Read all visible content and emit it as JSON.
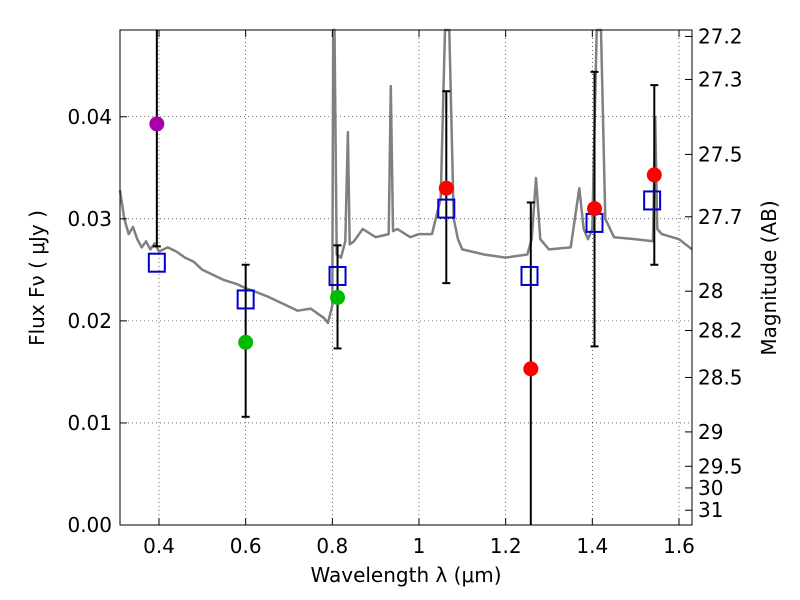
{
  "chart_data": {
    "type": "scatter",
    "title": "",
    "xlabel": "Wavelength  λ (μm)",
    "ylabel": "Flux  Fν  ( μJy )",
    "ylabel2": "Magnitude (AB)",
    "xlim": [
      0.31,
      1.63
    ],
    "ylim": [
      0.0,
      0.0485
    ],
    "grid": true,
    "xticks": [
      "0.4",
      "0.6",
      "0.8",
      "1",
      "1.2",
      "1.4",
      "1.6"
    ],
    "xtick_values": [
      0.4,
      0.6,
      0.8,
      1.0,
      1.2,
      1.4,
      1.6
    ],
    "yticks": [
      "0.00",
      "0.01",
      "0.02",
      "0.03",
      "0.04"
    ],
    "ytick_values": [
      0.0,
      0.01,
      0.02,
      0.03,
      0.04
    ],
    "magnitude_ticks": [
      "27.2",
      "27.3",
      "27.5",
      "27.7",
      "28",
      "28.2",
      "28.5",
      "29",
      "29.5",
      "30",
      "31"
    ],
    "magnitude_values": [
      27.2,
      27.3,
      27.5,
      27.7,
      28.0,
      28.2,
      28.5,
      29.0,
      29.5,
      30.0,
      31.0
    ],
    "colors": {
      "model_line": "#808080",
      "model_square": "#0000cc",
      "errorbar": "#000000",
      "grid": "#000000"
    },
    "series": [
      {
        "name": "SED model",
        "kind": "line",
        "x": [
          0.31,
          0.32,
          0.33,
          0.34,
          0.35,
          0.36,
          0.37,
          0.38,
          0.39,
          0.4,
          0.42,
          0.44,
          0.46,
          0.48,
          0.5,
          0.52,
          0.55,
          0.58,
          0.6,
          0.62,
          0.65,
          0.68,
          0.7,
          0.72,
          0.75,
          0.78,
          0.79,
          0.8,
          0.802,
          0.805,
          0.81,
          0.82,
          0.83,
          0.836,
          0.84,
          0.85,
          0.87,
          0.9,
          0.93,
          0.935,
          0.94,
          0.95,
          0.98,
          1.0,
          1.03,
          1.05,
          1.06,
          1.07,
          1.08,
          1.09,
          1.1,
          1.15,
          1.2,
          1.25,
          1.26,
          1.27,
          1.28,
          1.3,
          1.35,
          1.37,
          1.38,
          1.39,
          1.4,
          1.41,
          1.42,
          1.43,
          1.45,
          1.5,
          1.54,
          1.545,
          1.55,
          1.56,
          1.6,
          1.63
        ],
        "y": [
          0.0328,
          0.03,
          0.0285,
          0.0292,
          0.028,
          0.0272,
          0.0278,
          0.027,
          0.0276,
          0.0268,
          0.0272,
          0.0268,
          0.0262,
          0.0258,
          0.025,
          0.0246,
          0.024,
          0.0236,
          0.0232,
          0.0229,
          0.0224,
          0.0218,
          0.0214,
          0.021,
          0.0212,
          0.0203,
          0.0198,
          0.0215,
          0.0485,
          0.0485,
          0.0265,
          0.0262,
          0.0278,
          0.0385,
          0.0275,
          0.0278,
          0.029,
          0.0282,
          0.0285,
          0.043,
          0.0288,
          0.029,
          0.0282,
          0.0285,
          0.0285,
          0.032,
          0.0485,
          0.0485,
          0.03,
          0.028,
          0.027,
          0.0265,
          0.0262,
          0.0265,
          0.028,
          0.034,
          0.028,
          0.027,
          0.0272,
          0.033,
          0.029,
          0.028,
          0.029,
          0.0485,
          0.0485,
          0.03,
          0.0282,
          0.028,
          0.0278,
          0.04,
          0.029,
          0.0285,
          0.028,
          0.027
        ]
      },
      {
        "name": "Model photometry",
        "kind": "open_square",
        "x": [
          0.395,
          0.6,
          0.812,
          1.063,
          1.255,
          1.405,
          1.538
        ],
        "y": [
          0.0257,
          0.0221,
          0.0244,
          0.031,
          0.0244,
          0.0296,
          0.0318
        ]
      },
      {
        "name": "Observed photometry",
        "kind": "filled_circle",
        "x": [
          0.395,
          0.6,
          0.812,
          1.063,
          1.258,
          1.405,
          1.543
        ],
        "y": [
          0.0393,
          0.0179,
          0.0223,
          0.033,
          0.0153,
          0.031,
          0.0343
        ],
        "colors": [
          "#aa00aa",
          "#00bb00",
          "#00bb00",
          "#ff0000",
          "#ff0000",
          "#ff0000",
          "#ff0000"
        ],
        "err_low": [
          0.012,
          0.0073,
          0.005,
          0.0093,
          0.0153,
          0.0135,
          0.0088
        ],
        "err_high": [
          0.0092,
          0.0076,
          0.0051,
          0.0095,
          0.0163,
          0.0134,
          0.0088
        ]
      }
    ]
  }
}
